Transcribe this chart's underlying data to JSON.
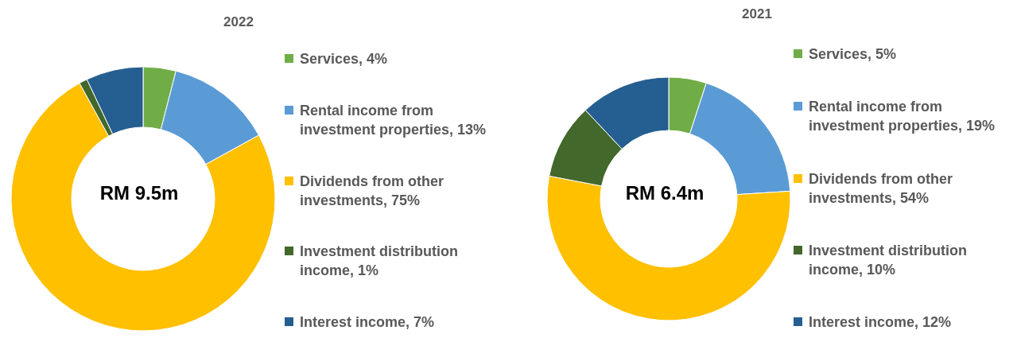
{
  "chart_data": [
    {
      "type": "donut",
      "title": "2022",
      "categories": [
        "Services, 4%",
        "Rental income from investment properties, 13%",
        "Dividends from other investments, 75%",
        "Investment distribution income, 1%",
        "Interest income, 7%"
      ],
      "values": [
        4,
        13,
        75,
        1,
        7
      ],
      "colors": [
        "#70ad47",
        "#5b9bd5",
        "#ffc000",
        "#43682b",
        "#255e91"
      ],
      "annotations": [
        "RM 9.5m"
      ],
      "legend": "right"
    },
    {
      "type": "donut",
      "title": "2021",
      "categories": [
        "Services, 5%",
        "Rental income from investment properties, 19%",
        "Dividends from other investments, 54%",
        "Investment distribution income, 10%",
        "Interest income, 12%"
      ],
      "values": [
        5,
        19,
        54,
        10,
        12
      ],
      "colors": [
        "#70ad47",
        "#5b9bd5",
        "#ffc000",
        "#43682b",
        "#255e91"
      ],
      "annotations": [
        "RM 6.4m"
      ],
      "legend": "right"
    }
  ]
}
